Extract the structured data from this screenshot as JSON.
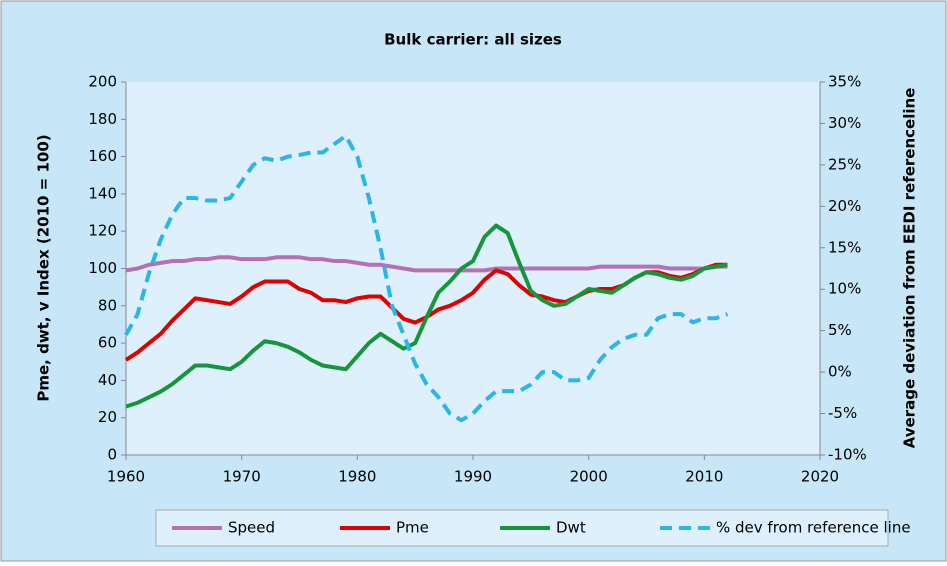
{
  "chart_data": {
    "type": "line",
    "title": "Bulk carrier: all sizes",
    "y_label": "Pme, dwt, v Index (2010 = 100)",
    "y2_label": "Average deviation from EEDI referenceline",
    "x": [
      1960,
      1961,
      1962,
      1963,
      1964,
      1965,
      1966,
      1967,
      1968,
      1969,
      1970,
      1971,
      1972,
      1973,
      1974,
      1975,
      1976,
      1977,
      1978,
      1979,
      1980,
      1981,
      1982,
      1983,
      1984,
      1985,
      1986,
      1987,
      1988,
      1989,
      1990,
      1991,
      1992,
      1993,
      1994,
      1995,
      1996,
      1997,
      1998,
      1999,
      2000,
      2001,
      2002,
      2003,
      2004,
      2005,
      2006,
      2007,
      2008,
      2009,
      2010,
      2011,
      2012
    ],
    "xlim": [
      1960,
      2020
    ],
    "xticks": [
      1960,
      1970,
      1980,
      1990,
      2000,
      2010,
      2020
    ],
    "ylim": [
      0,
      200
    ],
    "yticks": [
      0,
      20,
      40,
      60,
      80,
      100,
      120,
      140,
      160,
      180,
      200
    ],
    "y2lim": [
      -10,
      35
    ],
    "y2ticks": [
      {
        "value": -10,
        "label": "-10%"
      },
      {
        "value": -5,
        "label": "-5%"
      },
      {
        "value": 0,
        "label": "0%"
      },
      {
        "value": 5,
        "label": "5%"
      },
      {
        "value": 10,
        "label": "10%"
      },
      {
        "value": 15,
        "label": "15%"
      },
      {
        "value": 20,
        "label": "20%"
      },
      {
        "value": 25,
        "label": "25%"
      },
      {
        "value": 30,
        "label": "30%"
      },
      {
        "value": 35,
        "label": "35%"
      }
    ],
    "grid": false,
    "legend": "bottom",
    "series": [
      {
        "name": "Speed",
        "color": "#b86fb8",
        "values": [
          99,
          100,
          102,
          103,
          104,
          104,
          105,
          105,
          106,
          106,
          105,
          105,
          105,
          106,
          106,
          106,
          105,
          105,
          104,
          104,
          103,
          102,
          102,
          101,
          100,
          99,
          99,
          99,
          99,
          99,
          99,
          99,
          100,
          100,
          100,
          100,
          100,
          100,
          100,
          100,
          100,
          101,
          101,
          101,
          101,
          101,
          101,
          100,
          100,
          100,
          100,
          101,
          101
        ]
      },
      {
        "name": "Pme",
        "color": "#e00000",
        "values": [
          51,
          55,
          60,
          65,
          72,
          78,
          84,
          83,
          82,
          81,
          85,
          90,
          93,
          93,
          93,
          89,
          87,
          83,
          83,
          82,
          84,
          85,
          85,
          79,
          73,
          71,
          74,
          78,
          80,
          83,
          87,
          94,
          99,
          97,
          91,
          86,
          85,
          83,
          82,
          85,
          88,
          89,
          89,
          91,
          95,
          98,
          98,
          96,
          95,
          97,
          100,
          102,
          102
        ]
      },
      {
        "name": "Dwt",
        "color": "#16963a",
        "values": [
          26,
          28,
          31,
          34,
          38,
          43,
          48,
          48,
          47,
          46,
          50,
          56,
          61,
          60,
          58,
          55,
          51,
          48,
          47,
          46,
          53,
          60,
          65,
          61,
          57,
          60,
          74,
          87,
          93,
          100,
          104,
          117,
          123,
          119,
          103,
          88,
          83,
          80,
          81,
          85,
          89,
          88,
          87,
          91,
          95,
          98,
          97,
          95,
          94,
          96,
          100,
          101,
          102
        ]
      },
      {
        "name": "% dev from reference line",
        "color": "#2bb5e8",
        "dashed": true,
        "axis": "y2",
        "values": [
          4.5,
          7,
          12,
          16,
          19,
          21,
          21,
          20.7,
          20.7,
          21,
          23,
          25,
          25.8,
          25.5,
          26,
          26.2,
          26.5,
          26.5,
          27.5,
          28.5,
          26,
          21,
          15,
          8,
          4.5,
          1,
          -1.5,
          -3,
          -5,
          -5.8,
          -5,
          -3.5,
          -2.3,
          -2.3,
          -2.3,
          -1.5,
          0,
          0,
          -1,
          -1,
          -0.7,
          1.5,
          3,
          4,
          4.5,
          4.5,
          6.5,
          7,
          7,
          6,
          6.5,
          6.5,
          7
        ]
      }
    ]
  }
}
